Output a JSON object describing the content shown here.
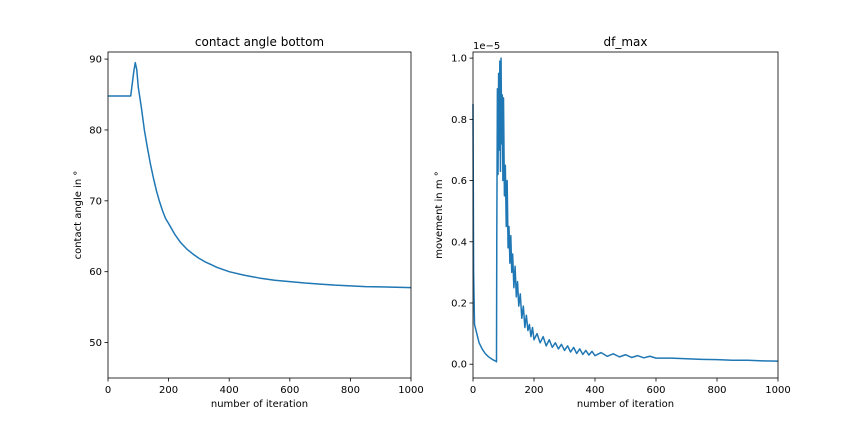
{
  "chart_data": [
    {
      "type": "line",
      "title": "contact angle bottom",
      "xlabel": "number of iteration",
      "ylabel": "contact angle in °",
      "xlim": [
        0,
        1000
      ],
      "ylim": [
        45,
        91
      ],
      "xticks": [
        0,
        200,
        400,
        600,
        800,
        1000
      ],
      "yticks": [
        50,
        60,
        70,
        80,
        90
      ],
      "xtick_labels": [
        "0",
        "200",
        "400",
        "600",
        "800",
        "1000"
      ],
      "ytick_labels": [
        "50",
        "60",
        "70",
        "80",
        "90"
      ],
      "grid": false,
      "line_color": "#1f77b4",
      "series": [
        {
          "x": [
            0,
            75,
            80,
            85,
            90,
            95,
            100,
            110,
            120,
            130,
            140,
            150,
            160,
            170,
            180,
            190,
            200,
            220,
            240,
            260,
            280,
            300,
            320,
            340,
            360,
            380,
            400,
            450,
            500,
            550,
            600,
            650,
            700,
            750,
            800,
            850,
            900,
            950,
            1000
          ],
          "y": [
            84.8,
            84.8,
            86.5,
            88.2,
            89.5,
            88.5,
            86.0,
            83.2,
            80.0,
            77.5,
            75.2,
            73.2,
            71.4,
            69.9,
            68.6,
            67.5,
            66.8,
            65.3,
            64.1,
            63.2,
            62.5,
            61.9,
            61.4,
            61.0,
            60.6,
            60.3,
            60.0,
            59.5,
            59.1,
            58.8,
            58.6,
            58.4,
            58.25,
            58.1,
            58.0,
            57.9,
            57.85,
            57.8,
            57.75
          ]
        }
      ]
    },
    {
      "type": "line",
      "title": "df_max",
      "xlabel": "number of iteration",
      "ylabel": "movement in m °",
      "offset_text": "1e−5",
      "xlim": [
        0,
        1000
      ],
      "ylim": [
        -0.045,
        1.02
      ],
      "xticks": [
        0,
        200,
        400,
        600,
        800,
        1000
      ],
      "yticks": [
        0.0,
        0.2,
        0.4,
        0.6,
        0.8,
        1.0
      ],
      "xtick_labels": [
        "0",
        "200",
        "400",
        "600",
        "800",
        "1000"
      ],
      "ytick_labels": [
        "0.0",
        "0.2",
        "0.4",
        "0.6",
        "0.8",
        "1.0"
      ],
      "grid": false,
      "line_color": "#1f77b4",
      "series": [
        {
          "x": [
            0,
            2,
            5,
            10,
            15,
            20,
            30,
            40,
            50,
            60,
            70,
            75,
            77,
            78,
            80,
            82,
            84,
            86,
            88,
            90,
            92,
            94,
            96,
            98,
            100,
            103,
            106,
            109,
            112,
            115,
            118,
            121,
            124,
            127,
            130,
            134,
            138,
            142,
            146,
            150,
            155,
            160,
            165,
            170,
            175,
            180,
            185,
            190,
            195,
            200,
            210,
            220,
            230,
            240,
            250,
            260,
            270,
            280,
            290,
            300,
            310,
            320,
            330,
            340,
            350,
            360,
            370,
            380,
            390,
            400,
            420,
            440,
            460,
            480,
            500,
            520,
            540,
            560,
            580,
            600,
            650,
            700,
            750,
            800,
            850,
            900,
            950,
            1000
          ],
          "y": [
            0.85,
            0.3,
            0.13,
            0.11,
            0.09,
            0.07,
            0.05,
            0.035,
            0.025,
            0.018,
            0.012,
            0.01,
            0.008,
            0.42,
            0.9,
            0.62,
            0.95,
            0.7,
            0.99,
            0.63,
            1.0,
            0.72,
            0.88,
            0.6,
            0.87,
            0.55,
            0.65,
            0.45,
            0.6,
            0.38,
            0.45,
            0.33,
            0.42,
            0.3,
            0.36,
            0.25,
            0.32,
            0.22,
            0.27,
            0.19,
            0.23,
            0.15,
            0.19,
            0.12,
            0.16,
            0.11,
            0.13,
            0.09,
            0.12,
            0.08,
            0.1,
            0.07,
            0.09,
            0.06,
            0.08,
            0.055,
            0.07,
            0.05,
            0.065,
            0.045,
            0.06,
            0.04,
            0.055,
            0.035,
            0.05,
            0.032,
            0.045,
            0.03,
            0.042,
            0.028,
            0.038,
            0.026,
            0.034,
            0.024,
            0.031,
            0.022,
            0.028,
            0.021,
            0.026,
            0.02,
            0.02,
            0.018,
            0.016,
            0.015,
            0.013,
            0.013,
            0.011,
            0.01
          ]
        }
      ]
    }
  ]
}
